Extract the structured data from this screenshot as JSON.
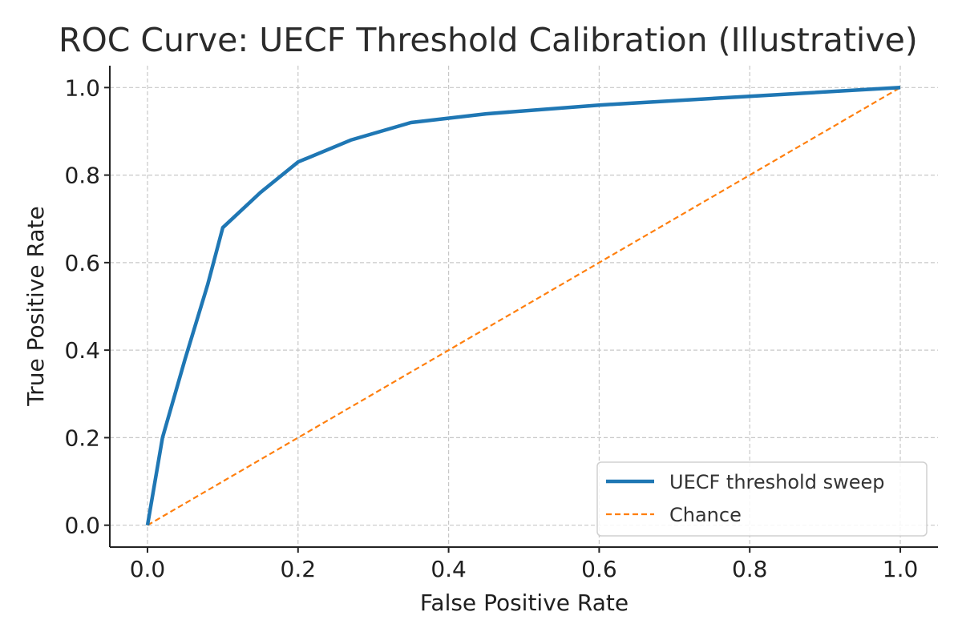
{
  "chart_data": {
    "type": "line",
    "title": "ROC Curve: UECF Threshold Calibration (Illustrative)",
    "xlabel": "False Positive Rate",
    "ylabel": "True Positive Rate",
    "xlim": [
      -0.05,
      1.05
    ],
    "ylim": [
      -0.05,
      1.05
    ],
    "xticks": [
      0.0,
      0.2,
      0.4,
      0.6,
      0.8,
      1.0
    ],
    "yticks": [
      0.0,
      0.2,
      0.4,
      0.6,
      0.8,
      1.0
    ],
    "xtick_labels": [
      "0.0",
      "0.2",
      "0.4",
      "0.6",
      "0.8",
      "1.0"
    ],
    "ytick_labels": [
      "0.0",
      "0.2",
      "0.4",
      "0.6",
      "0.8",
      "1.0"
    ],
    "grid": true,
    "legend_position": "lower-right",
    "series": [
      {
        "name": "UECF threshold sweep",
        "style": "solid",
        "color": "#1f77b4",
        "x": [
          0.0,
          0.02,
          0.05,
          0.08,
          0.1,
          0.15,
          0.2,
          0.27,
          0.35,
          0.45,
          0.6,
          0.8,
          1.0
        ],
        "y": [
          0.0,
          0.2,
          0.38,
          0.55,
          0.68,
          0.76,
          0.83,
          0.88,
          0.92,
          0.94,
          0.96,
          0.98,
          1.0
        ]
      },
      {
        "name": "Chance",
        "style": "dashed",
        "color": "#ff7f0e",
        "x": [
          0.0,
          1.0
        ],
        "y": [
          0.0,
          1.0
        ]
      }
    ]
  }
}
